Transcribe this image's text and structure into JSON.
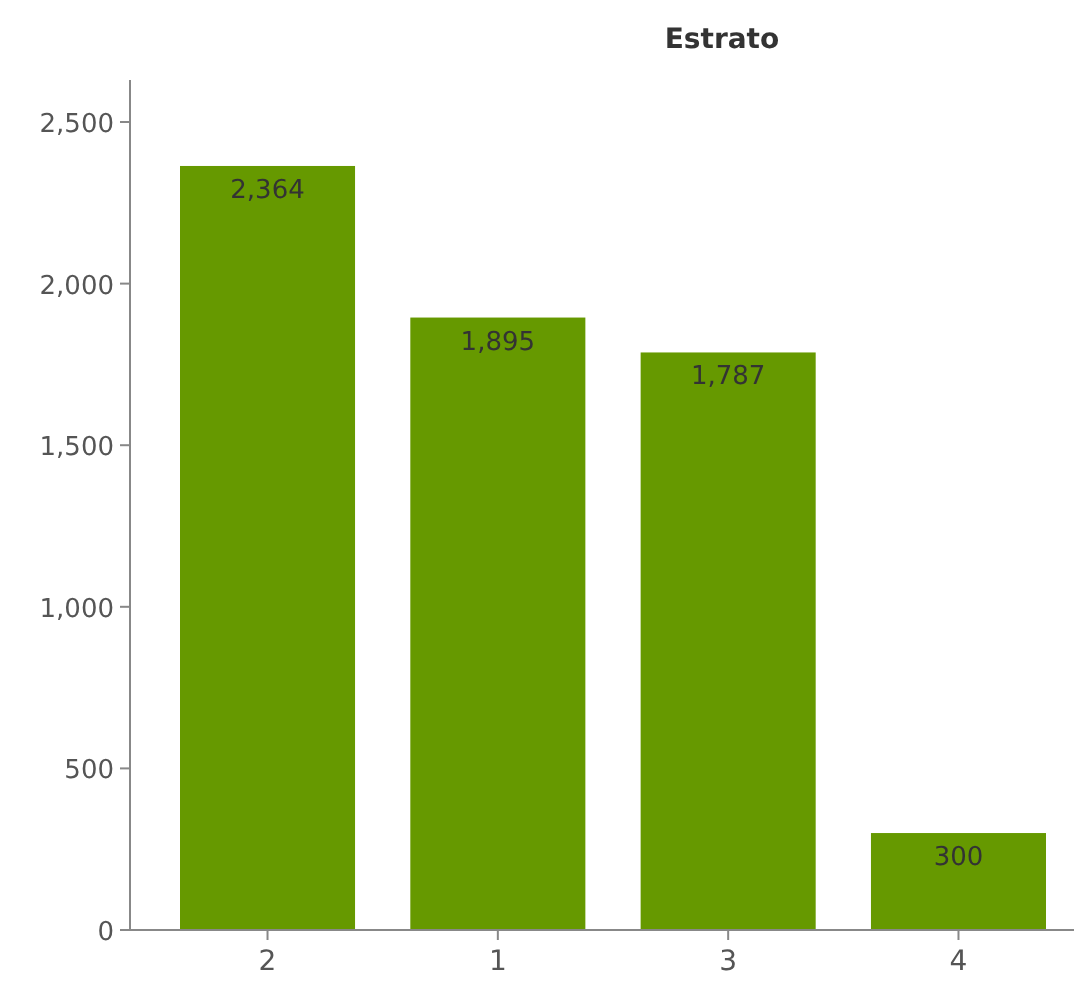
{
  "chart_data": {
    "type": "bar",
    "title": "Estrato",
    "categories": [
      "2",
      "1",
      "3",
      "4"
    ],
    "values": [
      2364,
      1895,
      1787,
      300
    ],
    "color": "#669900",
    "ylim": [
      0,
      2630
    ],
    "yticks": [
      0,
      {
        "value": 500,
        "label": "500"
      },
      {
        "value": 1000,
        "label": "1,000"
      },
      {
        "value": 1500,
        "label": "1,500"
      },
      {
        "value": 2000,
        "label": "2,000"
      },
      {
        "value": 2500,
        "label": "2,500"
      }
    ],
    "value_labels": [
      "2,364",
      "1,895",
      "1,787",
      "300"
    ],
    "grid": false
  }
}
